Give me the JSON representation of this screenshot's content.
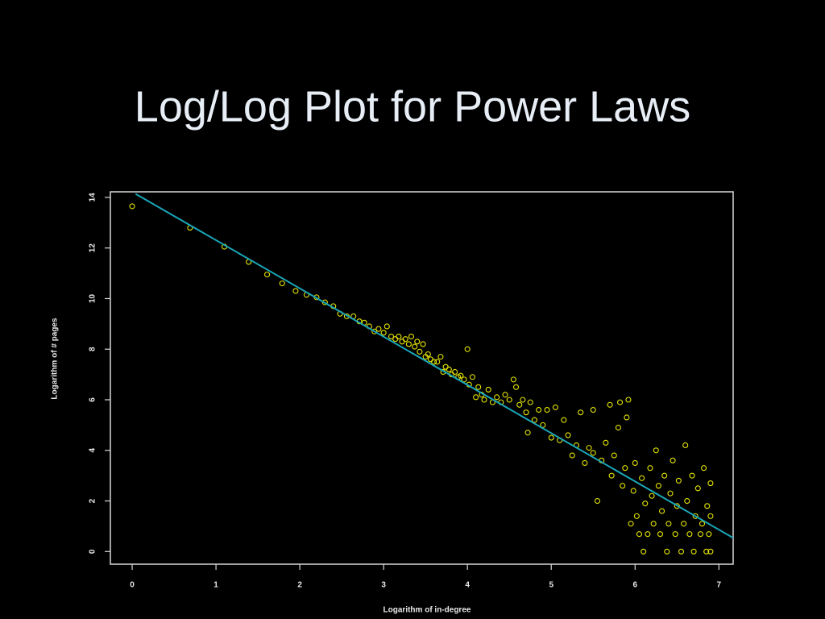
{
  "chart_data": {
    "type": "scatter",
    "title": "Log/Log Plot for Power Laws",
    "x_label": "Logarithm of in-degree",
    "y_label": "Logarithm of # pages",
    "xlim": [
      -0.26,
      7.17
    ],
    "ylim": [
      -0.5,
      14.22
    ],
    "xticks": [
      0,
      1,
      2,
      3,
      4,
      5,
      6,
      7
    ],
    "yticks": [
      0,
      2,
      4,
      6,
      8,
      10,
      12,
      14
    ],
    "points": {
      "color": "#e6e600",
      "x": [
        0,
        0.69,
        1.1,
        1.39,
        1.61,
        1.79,
        1.95,
        2.08,
        2.2,
        2.3,
        2.4,
        2.48,
        2.56,
        2.64,
        2.71,
        2.77,
        2.83,
        2.89,
        2.94,
        3.0,
        3.04,
        3.09,
        3.14,
        3.18,
        3.22,
        3.26,
        3.3,
        3.33,
        3.37,
        3.4,
        3.43,
        3.47,
        3.5,
        3.53,
        3.56,
        3.6,
        3.64,
        3.68,
        3.71,
        3.74,
        3.78,
        3.81,
        3.85,
        3.89,
        3.92,
        3.96,
        4.0,
        4.02,
        4.06,
        4.1,
        4.13,
        4.17,
        4.2,
        4.25,
        4.3,
        4.35,
        4.4,
        4.45,
        4.5,
        4.55,
        4.58,
        4.62,
        4.66,
        4.7,
        4.72,
        4.75,
        4.8,
        4.85,
        4.9,
        4.95,
        5.0,
        5.05,
        5.1,
        5.15,
        5.2,
        5.25,
        5.3,
        5.35,
        5.4,
        5.45,
        5.5,
        5.5,
        5.55,
        5.6,
        5.65,
        5.7,
        5.72,
        5.75,
        5.8,
        5.82,
        5.85,
        5.88,
        5.9,
        5.92,
        5.95,
        5.98,
        6.0,
        6.02,
        6.05,
        6.08,
        6.1,
        6.12,
        6.15,
        6.18,
        6.2,
        6.22,
        6.25,
        6.28,
        6.3,
        6.32,
        6.35,
        6.38,
        6.4,
        6.42,
        6.45,
        6.48,
        6.5,
        6.52,
        6.55,
        6.58,
        6.6,
        6.62,
        6.65,
        6.68,
        6.7,
        6.72,
        6.75,
        6.78,
        6.8,
        6.82,
        6.85,
        6.86,
        6.88,
        6.9,
        6.9,
        6.9
      ],
      "y": [
        13.65,
        12.8,
        12.05,
        11.45,
        10.95,
        10.6,
        10.3,
        10.15,
        10.05,
        9.85,
        9.7,
        9.4,
        9.3,
        9.3,
        9.1,
        9.05,
        8.9,
        8.7,
        8.8,
        8.65,
        8.9,
        8.5,
        8.4,
        8.5,
        8.3,
        8.4,
        8.2,
        8.5,
        8.1,
        8.3,
        7.9,
        8.2,
        7.7,
        7.8,
        7.6,
        7.5,
        7.5,
        7.7,
        7.1,
        7.3,
        7.2,
        7.0,
        7.1,
        6.9,
        6.95,
        6.8,
        8.0,
        6.6,
        6.9,
        6.1,
        6.5,
        6.2,
        6.0,
        6.4,
        5.9,
        6.1,
        5.9,
        6.2,
        6.0,
        6.8,
        6.5,
        5.8,
        6.0,
        5.5,
        4.7,
        5.9,
        5.2,
        5.6,
        5.0,
        5.6,
        4.5,
        5.7,
        4.4,
        5.2,
        4.6,
        3.8,
        4.2,
        5.5,
        3.5,
        4.1,
        3.9,
        5.6,
        2.0,
        3.6,
        4.3,
        5.8,
        3.0,
        3.8,
        4.9,
        5.9,
        2.6,
        3.3,
        5.3,
        6.0,
        1.1,
        2.4,
        3.5,
        1.4,
        0.69,
        2.9,
        0,
        1.9,
        0.69,
        3.3,
        2.2,
        1.1,
        4.0,
        2.6,
        0.69,
        1.6,
        3.0,
        0,
        1.1,
        2.3,
        3.6,
        0.69,
        1.8,
        2.8,
        0,
        1.1,
        4.2,
        2.0,
        0.69,
        3.0,
        0,
        1.4,
        2.5,
        0.69,
        1.1,
        3.3,
        0,
        1.8,
        0.69,
        2.7,
        0,
        1.4
      ]
    },
    "fit_line": {
      "color": "#19a6b8",
      "x": [
        0.04,
        7.17
      ],
      "y": [
        14.14,
        0.54
      ]
    }
  }
}
